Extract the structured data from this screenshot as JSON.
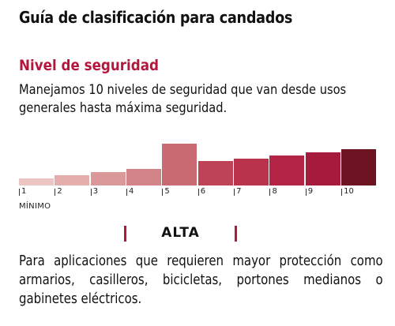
{
  "title": "Guía de clasificación para candados",
  "section_heading": "Nivel de seguridad",
  "intro": "Manejamos 10 niveles de seguridad que van desde usos generales hasta máxima seguridad.",
  "colors": {
    "accent": "#b5173c",
    "text": "#111111",
    "levels": [
      "#ecc6c2",
      "#e3aeab",
      "#db9899",
      "#d18388",
      "#c96a72",
      "#bf4356",
      "#b9334c",
      "#b42444",
      "#a61b3d",
      "#6d1322"
    ]
  },
  "scale": {
    "levels": [
      "1",
      "2",
      "3",
      "4",
      "5",
      "6",
      "7",
      "8",
      "9",
      "10"
    ],
    "min_label": "MÍNIMO",
    "relative_heights": [
      0.17,
      0.25,
      0.33,
      0.4,
      1,
      0.58,
      0.64,
      0.72,
      0.8,
      0.87
    ],
    "highlighted_level": "5"
  },
  "selected": {
    "level_name": "ALTA",
    "description": "Para aplicaciones que requieren mayor protección como armarios, casilleros, bicicletas, portones medianos o gabinetes eléctricos."
  }
}
